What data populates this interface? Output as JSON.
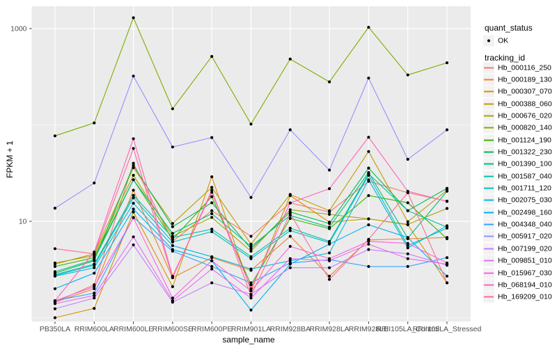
{
  "figure": {
    "background": "#FFFFFF",
    "panel_background": "#EBEBEB",
    "grid_color": "#FFFFFF",
    "tick_label_color": "#4D4D4D",
    "point_color": "#000000"
  },
  "axes": {
    "x_title": "sample_name",
    "y_title": "FPKM + 1",
    "y_tick_labels": [
      "1000",
      "10"
    ],
    "y_tick_values": [
      1000,
      10
    ]
  },
  "legend": {
    "quant_status_title": "quant_status",
    "quant_status_items": [
      {
        "label": "OK",
        "marker": "black-point"
      }
    ],
    "tracking_id_title": "tracking_id"
  },
  "chart_data": {
    "type": "line",
    "title": "",
    "xlabel": "sample_name",
    "ylabel": "FPKM + 1",
    "y_scale": "log10",
    "ylim": [
      0.9,
      1700
    ],
    "grid": true,
    "legend_position": "right",
    "point_marker": "small black dot at every vertex (quant_status = OK)",
    "x_categories": [
      "PB350LA",
      "RRIM600LA",
      "RRIM600LE",
      "RRIM600SE",
      "RRIM600PE",
      "RRIM901LA",
      "RRIM928BA",
      "RRIM928LA",
      "RRIM928LE",
      "RRII105LA_Control",
      "RRII105LA_Stressed"
    ],
    "series": [
      {
        "name": "Hb_000116_250",
        "color": "#F8766D",
        "values": [
          1.45,
          2.2,
          40,
          6.2,
          12.9,
          7.0,
          15.5,
          12.5,
          26,
          19.8,
          16.2
        ]
      },
      {
        "name": "Hb_000189_130",
        "color": "#EA8331",
        "values": [
          1.45,
          2.0,
          21,
          2.6,
          4.2,
          3.1,
          7.0,
          2.7,
          6.4,
          6.6,
          6.8
        ]
      },
      {
        "name": "Hb_000307_070",
        "color": "#D89000",
        "values": [
          1.0,
          1.25,
          12.5,
          2.1,
          29,
          1.9,
          18.5,
          9.8,
          10.6,
          9.2,
          2.3
        ]
      },
      {
        "name": "Hb_000388_060",
        "color": "#C09B00",
        "values": [
          3.6,
          4.6,
          36,
          9.5,
          22.5,
          5.8,
          19,
          12.9,
          53,
          9.9,
          21
        ]
      },
      {
        "name": "Hb_000676_020",
        "color": "#A3A500",
        "values": [
          3.7,
          4.4,
          30,
          7.0,
          11,
          4.9,
          13.2,
          11.8,
          10.6,
          9.3,
          13.6
        ]
      },
      {
        "name": "Hb_000820_140",
        "color": "#7CAE00",
        "values": [
          77,
          105,
          1294,
          147,
          513,
          102,
          482,
          280,
          1031,
          330,
          441
        ]
      },
      {
        "name": "Hb_001124_190",
        "color": "#39B600",
        "values": [
          3.4,
          4.2,
          27,
          6.5,
          18,
          2.2,
          10.7,
          8.4,
          18.5,
          15.6,
          6.6
        ]
      },
      {
        "name": "Hb_001322_230",
        "color": "#00BB4E",
        "values": [
          2.9,
          3.9,
          38,
          8.8,
          15.6,
          5.2,
          12.5,
          9.5,
          35.7,
          12.9,
          22
        ]
      },
      {
        "name": "Hb_001390_100",
        "color": "#00BF7D",
        "values": [
          3.0,
          4.0,
          27,
          7.5,
          12,
          5.5,
          11.5,
          8.7,
          32,
          6.7,
          20.5
        ]
      },
      {
        "name": "Hb_001587_040",
        "color": "#00C1A3",
        "values": [
          2.8,
          3.6,
          18.6,
          6.8,
          8.3,
          4.3,
          8.5,
          6.2,
          31,
          12.9,
          8.7
        ]
      },
      {
        "name": "Hb_001711_120",
        "color": "#00BFC4",
        "values": [
          2.75,
          3.5,
          17.5,
          6.1,
          7.8,
          4.1,
          8.0,
          6.0,
          30,
          5.6,
          8.5
        ]
      },
      {
        "name": "Hb_002075_030",
        "color": "#00BAE0",
        "values": [
          2.7,
          3.3,
          15.4,
          5.6,
          4.3,
          3.2,
          3.9,
          4.7,
          27,
          5.3,
          9.0
        ]
      },
      {
        "name": "Hb_002498_160",
        "color": "#00B0F6",
        "values": [
          2.0,
          2.9,
          13.4,
          5.1,
          3.9,
          1.2,
          3.6,
          5.8,
          9.2,
          6.8,
          2.7
        ]
      },
      {
        "name": "Hb_004348_040",
        "color": "#35A2FF",
        "values": [
          1.5,
          1.8,
          11,
          4.9,
          3.4,
          2.3,
          3.7,
          4.0,
          3.4,
          3.4,
          4.2
        ]
      },
      {
        "name": "Hb_005917_020",
        "color": "#9590FF",
        "values": [
          13.7,
          25,
          321,
          59,
          74,
          17.7,
          89,
          34,
          306,
          44,
          89
        ]
      },
      {
        "name": "Hb_007199_020",
        "color": "#C77CFF",
        "values": [
          1.24,
          1.6,
          5.7,
          1.45,
          2.3,
          1.75,
          3.3,
          3.3,
          5.1,
          4.6,
          3.5
        ]
      },
      {
        "name": "Hb_009851_010",
        "color": "#E76BF3",
        "values": [
          1.4,
          1.7,
          6.9,
          1.5,
          3.2,
          1.6,
          4.1,
          3.9,
          5.8,
          4.1,
          3.6
        ]
      },
      {
        "name": "Hb_015967_030",
        "color": "#FA62DB",
        "values": [
          1.5,
          2.1,
          10.9,
          1.6,
          3.9,
          1.9,
          5.5,
          4.1,
          6.2,
          5.9,
          3.7
        ]
      },
      {
        "name": "Hb_068194_010",
        "color": "#FF62BC",
        "values": [
          1.5,
          4.8,
          72,
          2.7,
          20,
          2.0,
          15.5,
          21.8,
          74.5,
          20.5,
          16.1
        ]
      },
      {
        "name": "Hb_169209_010",
        "color": "#FF6A98",
        "values": [
          5.2,
          4.6,
          57,
          2.6,
          21,
          1.7,
          12,
          2.5,
          6.5,
          19.8,
          2.3
        ]
      }
    ]
  }
}
